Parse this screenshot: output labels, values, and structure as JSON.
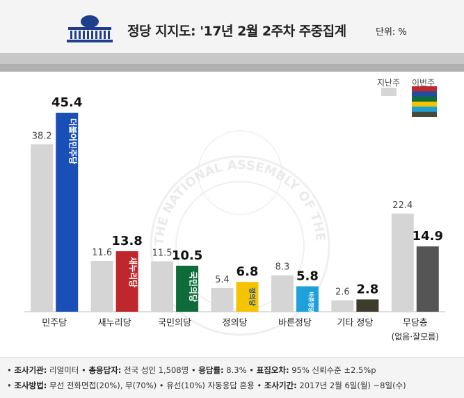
{
  "header": {
    "title": "정당 지지도: '17년 2월 2주차 주중집계",
    "unit": "단위: %"
  },
  "legend": {
    "previous": "지난주",
    "current": "이번주",
    "current_swatch_colors": [
      "#c0272d",
      "#1f4ea3",
      "#0e6b3a",
      "#f5c400",
      "#1e9fd8",
      "#4a4a3a"
    ]
  },
  "chart_data": {
    "type": "bar",
    "categories": [
      "민주당",
      "새누리당",
      "국민의당",
      "정의당",
      "바른정당",
      "기타 정당",
      "무당층"
    ],
    "category_sublabels": [
      "",
      "",
      "",
      "",
      "",
      "",
      "(없음·잘모름)"
    ],
    "series": [
      {
        "name": "지난주",
        "values": [
          38.2,
          11.6,
          11.5,
          5.4,
          8.3,
          2.6,
          22.4
        ],
        "color": "#d5d5d5"
      },
      {
        "name": "이번주",
        "values": [
          45.4,
          13.8,
          10.5,
          6.8,
          5.8,
          2.8,
          14.9
        ],
        "colors": [
          "#1a4fb8",
          "#c0272d",
          "#0e6b3a",
          "#f5c400",
          "#1ea0da",
          "#3d3b2c",
          "#555555"
        ]
      }
    ],
    "bar_logo_text": [
      "더불어민주당",
      "새누리당",
      "국민의당",
      "정의당",
      "바른정당",
      "",
      ""
    ],
    "bar_logo_text_colors": [
      "#ffffff",
      "#ffffff",
      "#ffffff",
      "#1f4ea3",
      "#ffffff",
      "",
      ""
    ],
    "ylim": [
      0,
      50
    ],
    "grid": false
  },
  "watermark": {
    "text": "THE NATIONAL ASSEMBLY OF THE REPUBLIC OF KOREA"
  },
  "footer": {
    "line1": [
      {
        "label": "조사기관",
        "value": "리얼미터"
      },
      {
        "label": "총응답자",
        "value": "전국 성인 1,508명"
      },
      {
        "label": "응답률",
        "value": "8.3%"
      },
      {
        "label": "표집오차",
        "value": "95% 신뢰수준 ±2.5%p"
      }
    ],
    "line2": [
      {
        "label": "조사방법",
        "value": "무선 전화면접(20%), 무(70%) • 유선(10%) 자동응답 혼용"
      },
      {
        "label": "조사기간",
        "value": "2017년 2월 6일(월) ~8일(수)"
      }
    ]
  }
}
